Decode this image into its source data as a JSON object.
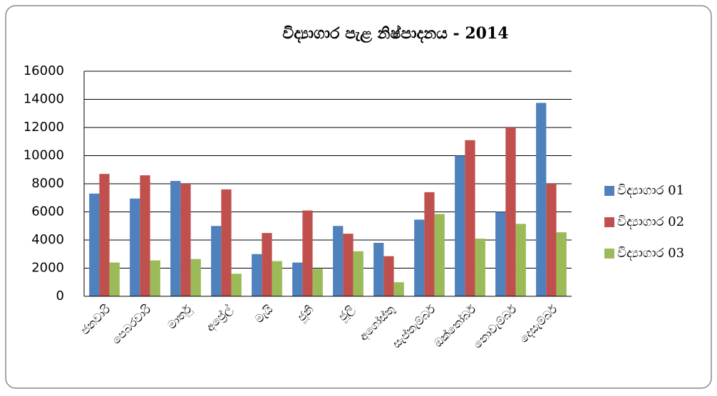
{
  "chart_data": {
    "type": "bar",
    "title": "විද්‍යාගාර පැළ නිෂ්පාදනය - 2014",
    "categories": [
      "ජනවාරි",
      "පෙබරවාරි",
      "මාර්තු",
      "අප්‍රේල්",
      "මැයි",
      "ජූනි",
      "ජූලි",
      "අගෝස්තු",
      "සැප්තැම්බර්",
      "ඔක්තෝබර්",
      "නොවැම්බර්",
      "දෙසැම්බර්"
    ],
    "series": [
      {
        "name": "විද්‍යාගාර 01",
        "color": "#4f81bd",
        "values": [
          7300,
          6950,
          8200,
          5000,
          3000,
          2400,
          5000,
          3800,
          5450,
          10000,
          6000,
          13750
        ]
      },
      {
        "name": "විද්‍යාගාර 02",
        "color": "#c0504d",
        "values": [
          8700,
          8600,
          8000,
          7600,
          4500,
          6100,
          4450,
          2850,
          7400,
          11100,
          12000,
          8000
        ]
      },
      {
        "name": "විද්‍යාගාර 03",
        "color": "#9bbb59",
        "values": [
          2400,
          2550,
          2650,
          1600,
          2500,
          1950,
          3200,
          1000,
          5850,
          4100,
          5150,
          4550
        ]
      }
    ],
    "ylim": [
      0,
      16000
    ],
    "yticks": [
      0,
      2000,
      4000,
      6000,
      8000,
      10000,
      12000,
      14000,
      16000
    ],
    "grid": true,
    "legend": "right"
  }
}
